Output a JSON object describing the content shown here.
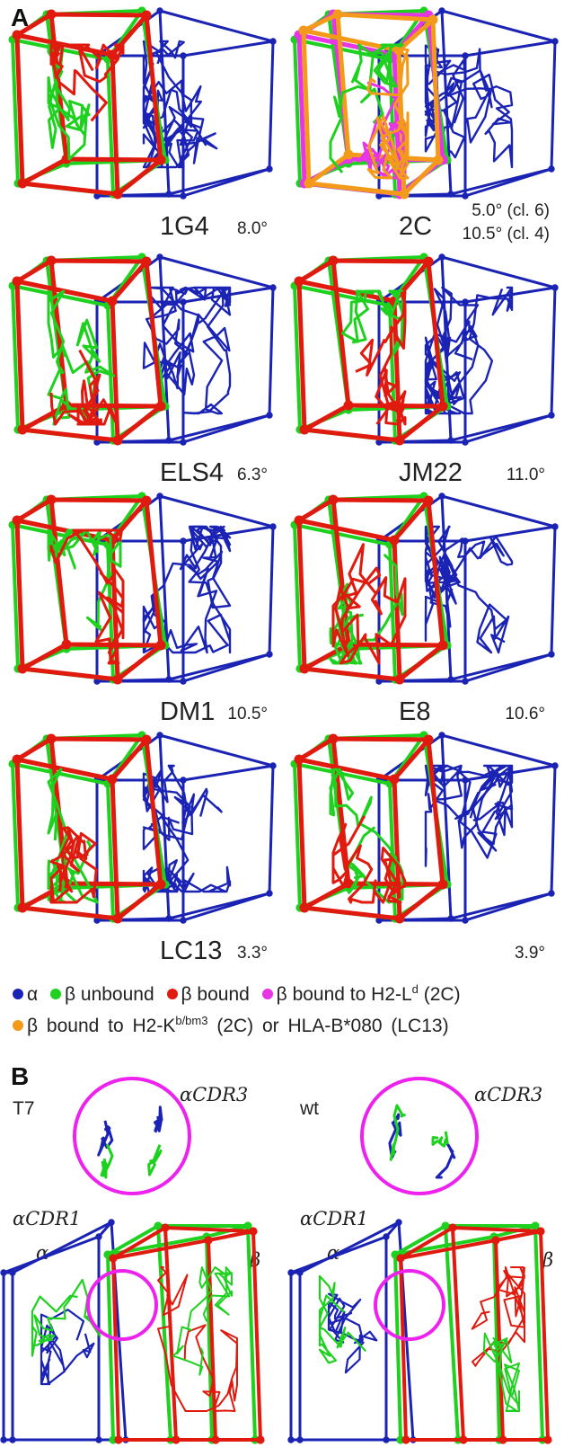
{
  "panel_a": {
    "letter": "A",
    "complexes": [
      {
        "name": "1G4",
        "angles": [
          "8.0°"
        ],
        "bound_colors": [
          "#e01a0e"
        ]
      },
      {
        "name": "2C",
        "angles": [
          "5.0° (cl. 6)",
          "10.5° (cl. 4)"
        ],
        "bound_colors": [
          "#e535e5",
          "#f49a1a"
        ]
      },
      {
        "name": "ELS4",
        "angles": [
          "6.3°"
        ],
        "bound_colors": [
          "#e01a0e"
        ]
      },
      {
        "name": "JM22",
        "angles": [
          "11.0°"
        ],
        "bound_colors": [
          "#e01a0e"
        ]
      },
      {
        "name": "DM1",
        "angles": [
          "10.5°"
        ],
        "bound_colors": [
          "#e01a0e"
        ]
      },
      {
        "name": "E8",
        "angles": [
          "10.6°"
        ],
        "bound_colors": [
          "#e01a0e"
        ]
      },
      {
        "name": "LC13",
        "angles": [
          "3.3°"
        ],
        "bound_colors": [
          "#e01a0e"
        ]
      },
      {
        "name": "",
        "angles": [
          "3.9°"
        ],
        "bound_colors": [
          "#e01a0e"
        ]
      }
    ],
    "legend": {
      "alpha": "α",
      "beta_unbound": "β unbound",
      "beta_bound": "β bound",
      "beta_h2ld": "β bound to H2-L",
      "beta_h2ld_sup": "d",
      "beta_h2ld_suffix": " (2C)",
      "beta_h2k": "β bound to H2-K",
      "beta_h2k_sup": "b/bm3",
      "beta_h2k_suffix": " (2C) or HLA-B*080 (LC13)"
    }
  },
  "panel_b": {
    "letter": "B",
    "left": {
      "label": "T7",
      "cdr3": "αCDR3",
      "cdr1": "αCDR1",
      "alpha": "α",
      "beta": "β"
    },
    "right": {
      "label": "wt",
      "cdr3": "αCDR3",
      "cdr1": "αCDR1",
      "alpha": "α",
      "beta": "β"
    }
  },
  "colors": {
    "alpha": "#1a23b4",
    "beta_unbound": "#1fd11f",
    "beta_bound": "#e01a0e",
    "beta_h2ld": "#e535e5",
    "beta_h2kb": "#f49a1a",
    "circle": "#ee22ee"
  }
}
